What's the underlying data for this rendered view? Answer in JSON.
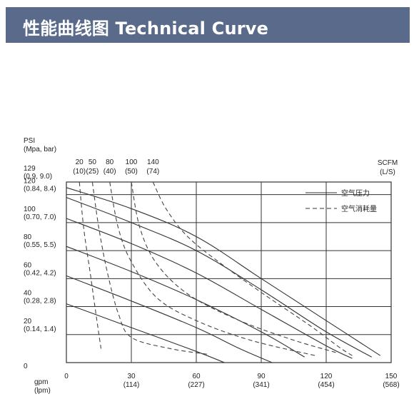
{
  "header": {
    "title": "性能曲线图 Technical Curve",
    "bg_color": "#5a6a8a"
  },
  "chart_data": {
    "type": "line",
    "title": "",
    "xlabel_line1": "gpm",
    "xlabel_line2": "(lpm)",
    "ylabel_line1": "PSI",
    "ylabel_line2": "(Mpa, bar)",
    "scfm_label_line1": "SCFM",
    "scfm_label_line2": "(L/S)",
    "xlim": [
      0,
      150
    ],
    "ylim": [
      0,
      129
    ],
    "x_ticks": [
      {
        "value": 0,
        "label": "0",
        "sub": ""
      },
      {
        "value": 30,
        "label": "30",
        "sub": "(114)"
      },
      {
        "value": 60,
        "label": "60",
        "sub": "(227)"
      },
      {
        "value": 90,
        "label": "90",
        "sub": "(341)"
      },
      {
        "value": 120,
        "label": "120",
        "sub": "(454)"
      },
      {
        "value": 150,
        "label": "150",
        "sub": "(568)"
      }
    ],
    "y_ticks": [
      {
        "value": 0,
        "label": "0",
        "sub": ""
      },
      {
        "value": 20,
        "label": "20",
        "sub": "(0.14, 1.4)"
      },
      {
        "value": 40,
        "label": "40",
        "sub": "(0.28, 2.8)"
      },
      {
        "value": 60,
        "label": "60",
        "sub": "(0.42, 4.2)"
      },
      {
        "value": 80,
        "label": "80",
        "sub": "(0.55, 5.5)"
      },
      {
        "value": 100,
        "label": "100",
        "sub": "(0.70, 7.0)"
      },
      {
        "value": 120,
        "label": "120",
        "sub": "(0.84, 8.4)"
      },
      {
        "value": 129,
        "label": "129",
        "sub": "(0.9, 9.0)"
      }
    ],
    "top_ticks": [
      {
        "label": "20",
        "sub": "(10)"
      },
      {
        "label": "50",
        "sub": "(25)"
      },
      {
        "label": "80",
        "sub": "(40)"
      },
      {
        "label": "100",
        "sub": "(50)"
      },
      {
        "label": "140",
        "sub": "(74)"
      }
    ],
    "grid": true,
    "legend": {
      "position": "top-right",
      "entries": [
        {
          "label": "空气压力",
          "style": "solid"
        },
        {
          "label": "空气消耗量",
          "style": "dashed"
        }
      ]
    },
    "pressure_curves": [
      {
        "points": [
          [
            0,
            125
          ],
          [
            30,
            110
          ],
          [
            60,
            90
          ],
          [
            90,
            60
          ],
          [
            120,
            30
          ],
          [
            145,
            5
          ]
        ]
      },
      {
        "points": [
          [
            0,
            118
          ],
          [
            30,
            100
          ],
          [
            60,
            80
          ],
          [
            90,
            52
          ],
          [
            120,
            22
          ],
          [
            141,
            4
          ]
        ]
      },
      {
        "points": [
          [
            0,
            103
          ],
          [
            30,
            85
          ],
          [
            60,
            64
          ],
          [
            90,
            38
          ],
          [
            120,
            12
          ],
          [
            132,
            3
          ]
        ]
      },
      {
        "points": [
          [
            0,
            83
          ],
          [
            30,
            65
          ],
          [
            60,
            45
          ],
          [
            90,
            22
          ],
          [
            110,
            4
          ]
        ]
      },
      {
        "points": [
          [
            0,
            62
          ],
          [
            30,
            44
          ],
          [
            60,
            25
          ],
          [
            80,
            10
          ],
          [
            95,
            0
          ]
        ]
      },
      {
        "points": [
          [
            0,
            42
          ],
          [
            30,
            25
          ],
          [
            60,
            8
          ],
          [
            73,
            0
          ]
        ]
      }
    ],
    "air_curves": [
      {
        "points": [
          [
            6,
            129
          ],
          [
            8,
            96
          ],
          [
            11,
            64
          ],
          [
            14,
            31
          ],
          [
            16,
            10
          ]
        ]
      },
      {
        "points": [
          [
            12,
            129
          ],
          [
            15,
            96
          ],
          [
            19,
            64
          ],
          [
            24,
            35
          ],
          [
            30,
            18
          ],
          [
            48,
            10
          ],
          [
            65,
            6
          ]
        ]
      },
      {
        "points": [
          [
            20,
            129
          ],
          [
            24,
            96
          ],
          [
            30,
            72
          ],
          [
            42,
            46
          ],
          [
            60,
            30
          ],
          [
            85,
            16
          ],
          [
            115,
            5
          ]
        ]
      },
      {
        "points": [
          [
            30,
            129
          ],
          [
            34,
            96
          ],
          [
            42,
            70
          ],
          [
            57,
            48
          ],
          [
            80,
            30
          ],
          [
            105,
            16
          ],
          [
            125,
            7
          ]
        ]
      },
      {
        "points": [
          [
            40,
            129
          ],
          [
            46,
            110
          ],
          [
            56,
            90
          ],
          [
            72,
            70
          ],
          [
            92,
            48
          ],
          [
            112,
            27
          ],
          [
            126,
            11
          ],
          [
            132,
            5
          ]
        ]
      }
    ]
  }
}
